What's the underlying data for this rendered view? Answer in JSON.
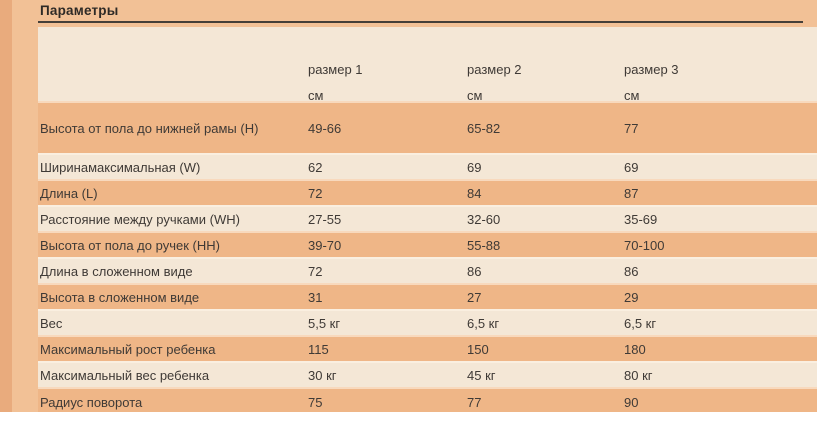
{
  "panel": {
    "title": "Параметры",
    "colors": {
      "panel_background": "#f2c196",
      "left_strip": "#e9ab7d",
      "row_cream": "#f4e7d6",
      "row_orange": "#efb687",
      "title_underline": "#453f39",
      "text": "#3f3a36"
    },
    "columns": [
      {
        "label": "размер 1",
        "unit": "см"
      },
      {
        "label": "размер 2",
        "unit": "см"
      },
      {
        "label": "размер 3",
        "unit": "см"
      }
    ],
    "rows": [
      {
        "label": "Высота от пола до нижней рамы (H)",
        "values": [
          "49-66",
          "65-82",
          "77"
        ]
      },
      {
        "label": "Ширинамаксимальная (W)",
        "values": [
          "62",
          "69",
          "69"
        ]
      },
      {
        "label": "Длина (L)",
        "values": [
          "72",
          "84",
          "87"
        ]
      },
      {
        "label": "Расстояние между ручками (WH)",
        "values": [
          "27-55",
          "32-60",
          "35-69"
        ]
      },
      {
        "label": "Высота от пола до ручек (HH)",
        "values": [
          "39-70",
          "55-88",
          "70-100"
        ]
      },
      {
        "label": "Длина в сложенном виде",
        "values": [
          "72",
          "86",
          "86"
        ]
      },
      {
        "label": "Высота в сложенном виде",
        "values": [
          "31",
          "27",
          "29"
        ]
      },
      {
        "label": "Вес",
        "values": [
          "5,5 кг",
          "6,5 кг",
          "6,5 кг"
        ]
      },
      {
        "label": "Максимальный рост ребенка",
        "values": [
          "115",
          "150",
          "180"
        ]
      },
      {
        "label": "Максимальный вес ребенка",
        "values": [
          "30 кг",
          "45 кг",
          "80 кг"
        ]
      },
      {
        "label": "Радиус поворота",
        "values": [
          "75",
          "77",
          "90"
        ]
      }
    ]
  },
  "chart_data": {
    "type": "table",
    "title": "Параметры",
    "columns": [
      "",
      "размер 1 см",
      "размер 2 см",
      "размер 3 см"
    ],
    "rows": [
      [
        "Высота от пола до нижней рамы (H)",
        "49-66",
        "65-82",
        "77"
      ],
      [
        "Ширинамаксимальная (W)",
        "62",
        "69",
        "69"
      ],
      [
        "Длина (L)",
        "72",
        "84",
        "87"
      ],
      [
        "Расстояние между ручками (WH)",
        "27-55",
        "32-60",
        "35-69"
      ],
      [
        "Высота от пола до ручек (HH)",
        "39-70",
        "55-88",
        "70-100"
      ],
      [
        "Длина в сложенном виде",
        "72",
        "86",
        "86"
      ],
      [
        "Высота в сложенном виде",
        "31",
        "27",
        "29"
      ],
      [
        "Вес",
        "5,5 кг",
        "6,5 кг",
        "6,5 кг"
      ],
      [
        "Максимальный рост ребенка",
        "115",
        "150",
        "180"
      ],
      [
        "Максимальный вес ребенка",
        "30 кг",
        "45 кг",
        "80 кг"
      ],
      [
        "Радиус поворота",
        "75",
        "77",
        "90"
      ]
    ]
  }
}
